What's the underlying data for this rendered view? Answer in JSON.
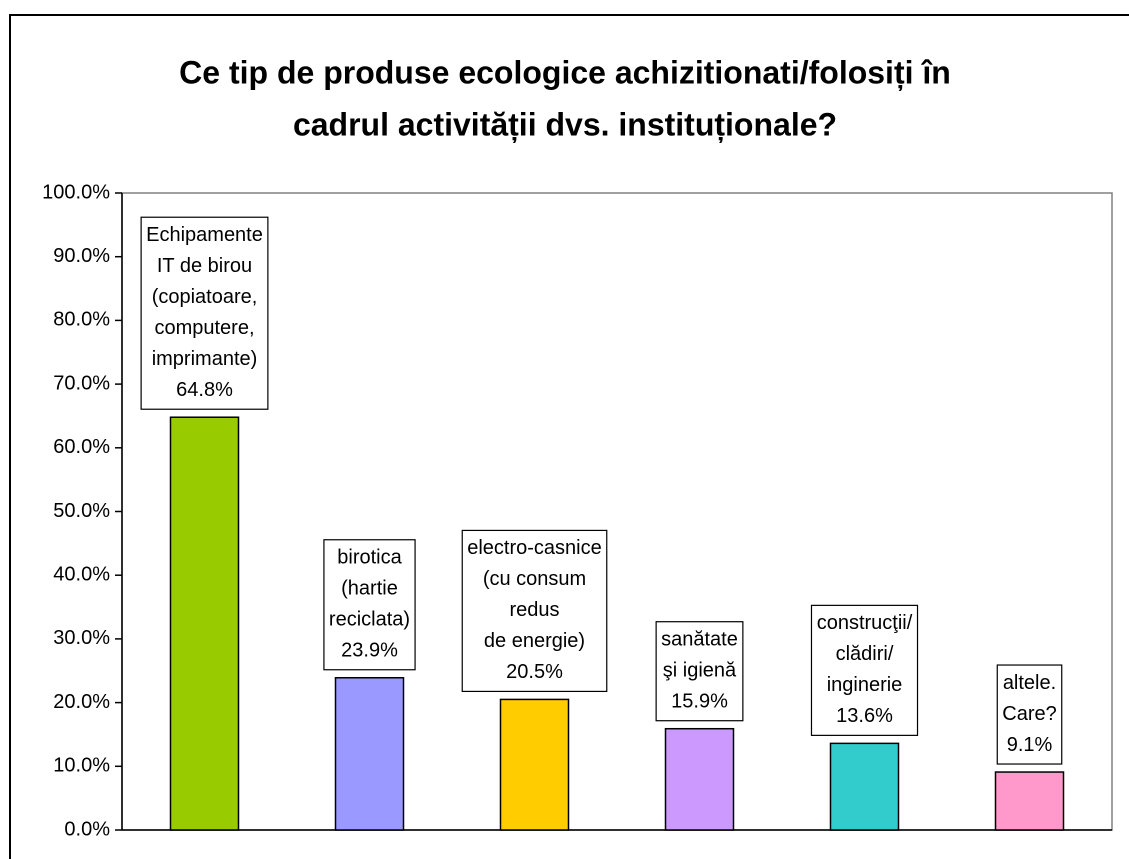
{
  "chart_data": {
    "type": "bar",
    "title": [
      "Ce tip de produse ecologice achizitionati/folosiți în",
      "cadrul activității dvs. instituționale?"
    ],
    "categories": [
      [
        "Echipamente",
        "IT de birou",
        "(copiatoare,",
        "computere,",
        "imprimante)"
      ],
      [
        "birotica",
        "(hartie",
        "reciclata)"
      ],
      [
        "electro-casnice",
        "(cu consum",
        "redus",
        "de energie)"
      ],
      [
        "sanătate",
        "şi igienă"
      ],
      [
        "construcţii/",
        "clădiri/",
        "inginerie"
      ],
      [
        "altele.",
        "Care?"
      ]
    ],
    "values": [
      64.8,
      23.9,
      20.5,
      15.9,
      13.6,
      9.1
    ],
    "value_labels": [
      "64.8%",
      "23.9%",
      "20.5%",
      "15.9%",
      "13.6%",
      "9.1%"
    ],
    "colors": [
      "#99cc00",
      "#9999ff",
      "#ffcc00",
      "#cc99ff",
      "#33cccc",
      "#ff99cc"
    ],
    "ylim": [
      0,
      100
    ],
    "yticks": [
      {
        "value": 0,
        "label": "0.0%"
      },
      {
        "value": 10,
        "label": "10.0%"
      },
      {
        "value": 20,
        "label": "20.0%"
      },
      {
        "value": 30,
        "label": "30.0%"
      },
      {
        "value": 40,
        "label": "40.0%"
      },
      {
        "value": 50,
        "label": "50.0%"
      },
      {
        "value": 60,
        "label": "60.0%"
      },
      {
        "value": 70,
        "label": "70.0%"
      },
      {
        "value": 80,
        "label": "80.0%"
      },
      {
        "value": 90,
        "label": "90.0%"
      },
      {
        "value": 100,
        "label": "100.0%"
      }
    ]
  }
}
